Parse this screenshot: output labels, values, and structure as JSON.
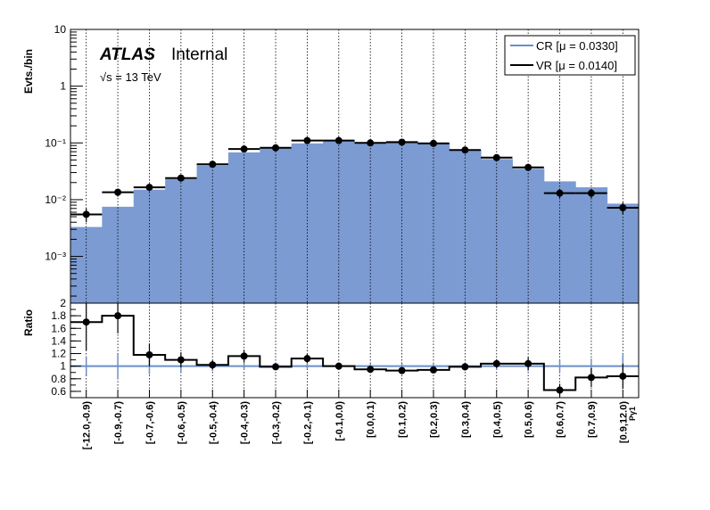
{
  "chart_data": {
    "type": "bar",
    "categories": [
      "[-12.0,-0.9)",
      "[-0.9,-0.7)",
      "[-0.7,-0.6)",
      "[-0.6,-0.5)",
      "[-0.5,-0.4)",
      "[-0.4,-0.3)",
      "[-0.3,-0.2)",
      "[-0.2,-0.1)",
      "[-0.1,0.0)",
      "[0.0,0.1)",
      "[0.1,0.2)",
      "[0.2,0.3)",
      "[0.3,0.4)",
      "[0.4,0.5)",
      "[0.5,0.6)",
      "[0.6,0.7)",
      "[0.7,0.9)",
      "[0.9,12.0)"
    ],
    "xlabel": "Pγ1",
    "top_panel": {
      "ylabel": "Evts./bin",
      "yscale": "log",
      "ylim": [
        0.00015,
        10
      ],
      "yticks": [
        "10⁻³",
        "10⁻²",
        "10⁻¹",
        "1",
        "10"
      ],
      "series": [
        {
          "name": "CR [μ = 0.0330]",
          "style": "filled",
          "color": "#7b9bd2",
          "values": [
            0.0033,
            0.0075,
            0.015,
            0.023,
            0.04,
            0.068,
            0.081,
            0.098,
            0.108,
            0.102,
            0.108,
            0.102,
            0.075,
            0.052,
            0.035,
            0.021,
            0.0165,
            0.0085
          ]
        },
        {
          "name": "VR [μ = 0.0140]",
          "style": "points",
          "color": "#000000",
          "values": [
            0.0055,
            0.0135,
            0.0165,
            0.024,
            0.042,
            0.078,
            0.082,
            0.11,
            0.11,
            0.1,
            0.103,
            0.098,
            0.075,
            0.055,
            0.037,
            0.013,
            0.013,
            0.0072
          ],
          "errors": [
            0.0015,
            0.0022,
            0.0024,
            0.003,
            0.004,
            0.0055,
            0.0055,
            0.0065,
            0.0065,
            0.0062,
            0.0063,
            0.0062,
            0.0055,
            0.0047,
            0.0039,
            0.0023,
            0.0023,
            0.0017
          ]
        }
      ],
      "legend": "top-right"
    },
    "ratio_panel": {
      "ylabel": "Ratio",
      "ylim": [
        0.5,
        2.0
      ],
      "yticks": [
        "0.6",
        "0.8",
        "1",
        "1.2",
        "1.4",
        "1.6",
        "1.8",
        "2"
      ],
      "values": [
        1.7,
        1.8,
        1.18,
        1.1,
        1.02,
        1.16,
        0.99,
        1.12,
        1.0,
        0.95,
        0.93,
        0.94,
        0.99,
        1.04,
        1.04,
        0.62,
        0.82,
        0.84
      ],
      "errors": [
        0.45,
        0.28,
        0.18,
        0.12,
        0.07,
        0.1,
        0.05,
        0.07,
        0.04,
        0.04,
        0.04,
        0.04,
        0.06,
        0.07,
        0.1,
        0.1,
        0.15,
        0.2
      ],
      "cr_errors": [
        0.15,
        0.2,
        0.13,
        0.1,
        0.08,
        0.06,
        0.06,
        0.05,
        0.04,
        0.04,
        0.04,
        0.05,
        0.06,
        0.06,
        0.08,
        0.1,
        0.12,
        0.2
      ]
    }
  },
  "labels": {
    "atlas": "ATLAS",
    "internal": "Internal",
    "energy": "√s = 13 TeV",
    "legend_cr": "CR [μ = 0.0330]",
    "legend_vr": "VR [μ = 0.0140]",
    "top_ylabel": "Evts./bin",
    "ratio_ylabel": "Ratio",
    "xlabel": "Pγ1"
  },
  "colors": {
    "cr_fill": "#7b9bd2",
    "cr_line": "#6b8fc8",
    "vr": "#000000",
    "grid": "#000000"
  }
}
